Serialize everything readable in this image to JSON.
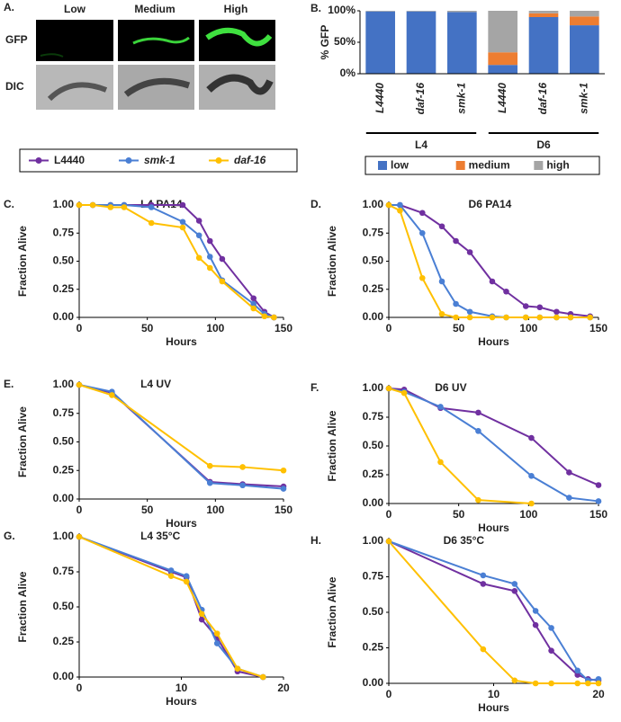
{
  "panel_a": {
    "panel": "A.",
    "columns": [
      "Low",
      "Medium",
      "High"
    ],
    "rows": [
      "GFP",
      "DIC"
    ]
  },
  "legend": [
    {
      "name": "L4440",
      "color": "#7030a0"
    },
    {
      "name": "smk-1",
      "color": "#4a7fd4"
    },
    {
      "name": "daf-16",
      "color": "#ffc000"
    }
  ],
  "chart_data": [
    {
      "type": "bar",
      "panel": "B.",
      "ylabel": "% GFP",
      "categories": [
        "L4440",
        "daf-16",
        "smk-1",
        "L4440",
        "daf-16",
        "smk-1"
      ],
      "group_labels": [
        "L4",
        "D6"
      ],
      "series": [
        {
          "name": "low",
          "color": "#4472c4",
          "values": [
            99,
            99,
            98,
            14,
            90,
            77
          ]
        },
        {
          "name": "medium",
          "color": "#ed7d31",
          "values": [
            0,
            0,
            0,
            20,
            6,
            14
          ]
        },
        {
          "name": "high",
          "color": "#a5a5a5",
          "values": [
            1,
            1,
            2,
            66,
            4,
            9
          ]
        }
      ],
      "ylim": [
        0,
        100
      ],
      "yticks": [
        {
          "value": 0,
          "label": "0%"
        },
        {
          "value": 50,
          "label": "50%"
        },
        {
          "value": 100,
          "label": "100%"
        }
      ]
    },
    {
      "type": "line",
      "panel": "C.",
      "title": "L4 PA14",
      "xlabel": "Hours",
      "ylabel": "Fraction Alive",
      "x": [
        0,
        10,
        23,
        33,
        53,
        76,
        88,
        96,
        105,
        128,
        136,
        143
      ],
      "series": [
        {
          "values": [
            1,
            1,
            1,
            1,
            1,
            1,
            0.86,
            0.68,
            0.52,
            0.17,
            0.05,
            0
          ]
        },
        {
          "values": [
            1,
            1,
            1,
            1,
            0.98,
            0.85,
            0.73,
            0.54,
            0.33,
            0.12,
            0.03,
            0
          ]
        },
        {
          "values": [
            1,
            1,
            0.98,
            0.98,
            0.84,
            0.8,
            0.53,
            0.44,
            0.32,
            0.08,
            0.01,
            0
          ]
        }
      ],
      "xlim": [
        0,
        150
      ],
      "xticks": [
        0,
        50,
        100,
        150
      ],
      "ylim": [
        0,
        1
      ],
      "yticks": [
        {
          "value": 0,
          "label": "0.00"
        },
        {
          "value": 0.25,
          "label": "0.25"
        },
        {
          "value": 0.5,
          "label": "0.50"
        },
        {
          "value": 0.75,
          "label": "0.75"
        },
        {
          "value": 1,
          "label": "1.00"
        }
      ]
    },
    {
      "type": "line",
      "panel": "D.",
      "title": "D6 PA14",
      "xlabel": "Hours",
      "ylabel": "Fraction Alive",
      "x": [
        0,
        8,
        24,
        38,
        48,
        58,
        74,
        84,
        98,
        108,
        120,
        130,
        144
      ],
      "series": [
        {
          "values": [
            1,
            1,
            0.93,
            0.81,
            0.68,
            0.58,
            0.32,
            0.23,
            0.1,
            0.09,
            0.05,
            0.03,
            0.01
          ]
        },
        {
          "values": [
            1,
            1,
            0.75,
            0.32,
            0.12,
            0.05,
            0.01,
            0,
            0,
            0,
            0,
            0,
            0
          ]
        },
        {
          "values": [
            1,
            0.95,
            0.35,
            0.03,
            0,
            0,
            0,
            0,
            0,
            0,
            0,
            0,
            0
          ]
        }
      ],
      "xlim": [
        0,
        150
      ],
      "xticks": [
        0,
        50,
        100,
        150
      ],
      "ylim": [
        0,
        1
      ],
      "yticks": [
        {
          "value": 0,
          "label": "0.00"
        },
        {
          "value": 0.25,
          "label": "0.25"
        },
        {
          "value": 0.5,
          "label": "0.50"
        },
        {
          "value": 0.75,
          "label": "0.75"
        },
        {
          "value": 1,
          "label": "1.00"
        }
      ]
    },
    {
      "type": "line",
      "panel": "E.",
      "title": "L4 UV",
      "xlabel": "Hours",
      "ylabel": "Fraction Alive",
      "x": [
        0,
        24,
        96,
        120,
        150
      ],
      "series": [
        {
          "values": [
            1,
            0.93,
            0.15,
            0.13,
            0.11
          ]
        },
        {
          "values": [
            1,
            0.94,
            0.14,
            0.12,
            0.09
          ]
        },
        {
          "values": [
            1,
            0.91,
            0.29,
            0.28,
            0.25
          ]
        }
      ],
      "xlim": [
        0,
        150
      ],
      "xticks": [
        0,
        50,
        100,
        150
      ],
      "ylim": [
        0,
        1
      ],
      "yticks": [
        {
          "value": 0,
          "label": "0.00"
        },
        {
          "value": 0.25,
          "label": "0.25"
        },
        {
          "value": 0.5,
          "label": "0.50"
        },
        {
          "value": 0.75,
          "label": "0.75"
        },
        {
          "value": 1,
          "label": "1.00"
        }
      ]
    },
    {
      "type": "line",
      "panel": "F.",
      "title": "D6 UV",
      "xlabel": "Hours",
      "ylabel": "Fraction Alive",
      "x": [
        0,
        11,
        37,
        64,
        102,
        129,
        150
      ],
      "series": [
        {
          "values": [
            1,
            0.99,
            0.83,
            0.79,
            0.57,
            0.27,
            0.16
          ]
        },
        {
          "values": [
            1,
            0.97,
            0.84,
            0.63,
            0.24,
            0.05,
            0.02
          ]
        },
        {
          "values": [
            1,
            0.96,
            0.36,
            0.03,
            0,
            null,
            null
          ]
        }
      ],
      "xlim": [
        0,
        150
      ],
      "xticks": [
        0,
        50,
        100,
        150
      ],
      "ylim": [
        0,
        1
      ],
      "yticks": [
        {
          "value": 0,
          "label": "0.00"
        },
        {
          "value": 0.25,
          "label": "0.25"
        },
        {
          "value": 0.5,
          "label": "0.50"
        },
        {
          "value": 0.75,
          "label": "0.75"
        },
        {
          "value": 1,
          "label": "1.00"
        }
      ]
    },
    {
      "type": "line",
      "panel": "G.",
      "title": "L4 35°C",
      "xlabel": "Hours",
      "ylabel": "Fraction Alive",
      "x": [
        0,
        9,
        10.5,
        12,
        13.5,
        15.5,
        18
      ],
      "series": [
        {
          "values": [
            1,
            0.75,
            0.71,
            0.41,
            0.28,
            0.04,
            0
          ]
        },
        {
          "values": [
            1,
            0.76,
            0.72,
            0.48,
            0.24,
            0.06,
            0
          ]
        },
        {
          "values": [
            1,
            0.72,
            0.68,
            0.45,
            0.31,
            0.06,
            0
          ]
        }
      ],
      "xlim": [
        0,
        20
      ],
      "xticks": [
        0,
        10,
        20
      ],
      "ylim": [
        0,
        1
      ],
      "yticks": [
        {
          "value": 0,
          "label": "0.00"
        },
        {
          "value": 0.25,
          "label": "0.25"
        },
        {
          "value": 0.5,
          "label": "0.50"
        },
        {
          "value": 0.75,
          "label": "0.75"
        },
        {
          "value": 1,
          "label": "1.00"
        }
      ]
    },
    {
      "type": "line",
      "panel": "H.",
      "title": "D6 35°C",
      "xlabel": "Hours",
      "ylabel": "Fraction Alive",
      "x": [
        0,
        9,
        12,
        14,
        15.5,
        18,
        19,
        20
      ],
      "series": [
        {
          "values": [
            1,
            0.7,
            0.65,
            0.41,
            0.23,
            0.06,
            0.03,
            0.02
          ]
        },
        {
          "values": [
            1,
            0.76,
            0.7,
            0.51,
            0.39,
            0.09,
            0.02,
            0.03
          ]
        },
        {
          "values": [
            1,
            0.24,
            0.02,
            0,
            0,
            0,
            0,
            0
          ]
        }
      ],
      "xlim": [
        0,
        20
      ],
      "xticks": [
        0,
        10,
        20
      ],
      "ylim": [
        0,
        1
      ],
      "yticks": [
        {
          "value": 0,
          "label": "0.00"
        },
        {
          "value": 0.25,
          "label": "0.25"
        },
        {
          "value": 0.5,
          "label": "0.50"
        },
        {
          "value": 0.75,
          "label": "0.75"
        },
        {
          "value": 1,
          "label": "1.00"
        }
      ]
    }
  ]
}
